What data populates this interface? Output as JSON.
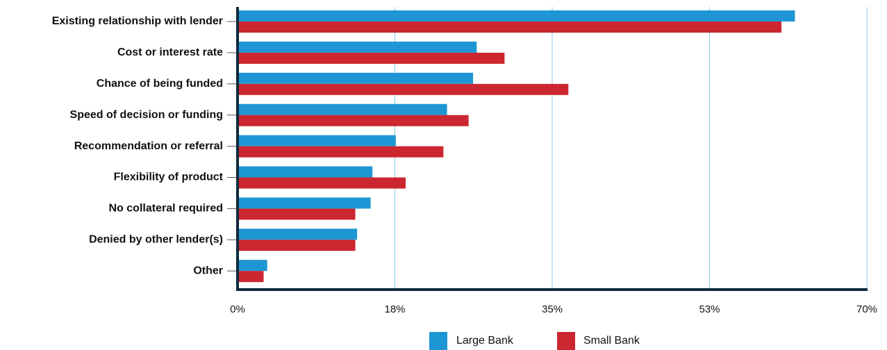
{
  "chart_data": {
    "type": "bar",
    "orientation": "horizontal",
    "categories": [
      "Existing relationship with lender",
      "Cost or interest rate",
      "Chance of being funded",
      "Speed of decision or funding",
      "Recommendation or referral",
      "Flexibility of product",
      "No collateral required",
      "Denied by other lender(s)",
      "Other"
    ],
    "series": [
      {
        "name": "Large Bank",
        "color": "#1f96d4",
        "values": [
          62,
          26.6,
          26.2,
          23.3,
          17.6,
          15,
          14.8,
          13.3,
          3.3
        ]
      },
      {
        "name": "Small Bank",
        "color": "#cc2630",
        "values": [
          60.5,
          29.7,
          36.8,
          25.7,
          22.9,
          18.7,
          13.1,
          13.1,
          2.9
        ]
      }
    ],
    "xlim": [
      0,
      70
    ],
    "xticks": [
      {
        "value": 0,
        "label": "0%"
      },
      {
        "value": 17.5,
        "label": "18%"
      },
      {
        "value": 35,
        "label": "35%"
      },
      {
        "value": 52.5,
        "label": "53%"
      },
      {
        "value": 70,
        "label": "70%"
      }
    ],
    "grid": "vertical",
    "legend": "bottom-center",
    "axis_color": "#0e2a3a",
    "grid_color": "#8ec9e8"
  }
}
